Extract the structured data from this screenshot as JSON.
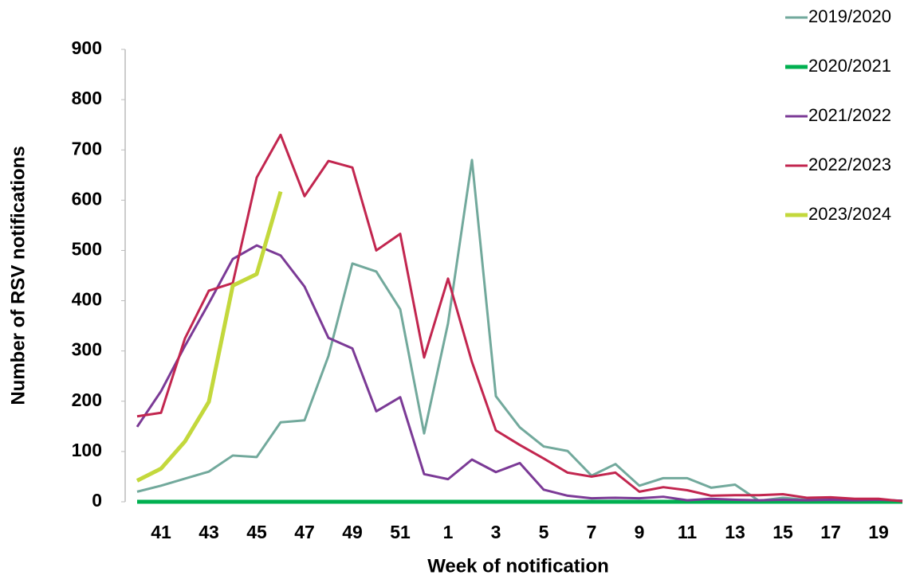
{
  "chart_data": {
    "type": "line",
    "x_label": "Week of notification",
    "y_label": "Number of RSV notifications",
    "categories": [
      null,
      "41",
      null,
      "43",
      null,
      "45",
      null,
      "47",
      null,
      "49",
      null,
      "51",
      null,
      "1",
      null,
      "3",
      null,
      "5",
      null,
      "7",
      null,
      "9",
      null,
      "11",
      null,
      "13",
      null,
      "15",
      null,
      "17",
      null,
      "19",
      null
    ],
    "ylim": [
      0,
      900
    ],
    "yticks": [
      0,
      100,
      200,
      300,
      400,
      500,
      600,
      700,
      800,
      900
    ],
    "legend": "right",
    "series": [
      {
        "name": "2019/2020",
        "color": "#72a99c",
        "values": [
          20,
          32,
          46,
          60,
          92,
          89,
          158,
          162,
          290,
          474,
          458,
          383,
          136,
          355,
          680,
          210,
          148,
          110,
          101,
          52,
          75,
          32,
          47,
          47,
          28,
          34,
          2,
          8,
          4,
          5,
          3,
          4,
          2
        ]
      },
      {
        "name": "2020/2021",
        "color": "#00b050",
        "values": [
          0,
          0,
          0,
          0,
          0,
          0,
          0,
          0,
          0,
          0,
          0,
          0,
          0,
          0,
          0,
          0,
          0,
          0,
          0,
          0,
          0,
          0,
          0,
          0,
          0,
          0,
          0,
          0,
          0,
          0,
          0,
          0,
          0
        ]
      },
      {
        "name": "2021/2022",
        "color": "#7b3a96",
        "values": [
          149,
          220,
          310,
          395,
          483,
          510,
          490,
          428,
          326,
          305,
          180,
          208,
          55,
          45,
          84,
          59,
          77,
          24,
          12,
          7,
          8,
          7,
          10,
          3,
          6,
          4,
          3,
          4,
          3,
          4,
          3,
          4,
          2
        ]
      },
      {
        "name": "2022/2023",
        "color": "#c2264f",
        "values": [
          170,
          177,
          325,
          420,
          435,
          645,
          730,
          608,
          678,
          665,
          500,
          533,
          287,
          444,
          278,
          142,
          113,
          86,
          58,
          50,
          58,
          20,
          29,
          23,
          12,
          13,
          13,
          15,
          8,
          9,
          6,
          6,
          1
        ]
      },
      {
        "name": "2023/2024",
        "color": "#c3d83c",
        "values": [
          42,
          66,
          120,
          199,
          430,
          453,
          617,
          null,
          null,
          null,
          null,
          null,
          null,
          null,
          null,
          null,
          null,
          null,
          null,
          null,
          null,
          null,
          null,
          null,
          null,
          null,
          null,
          null,
          null,
          null,
          null,
          null,
          null
        ]
      }
    ]
  }
}
